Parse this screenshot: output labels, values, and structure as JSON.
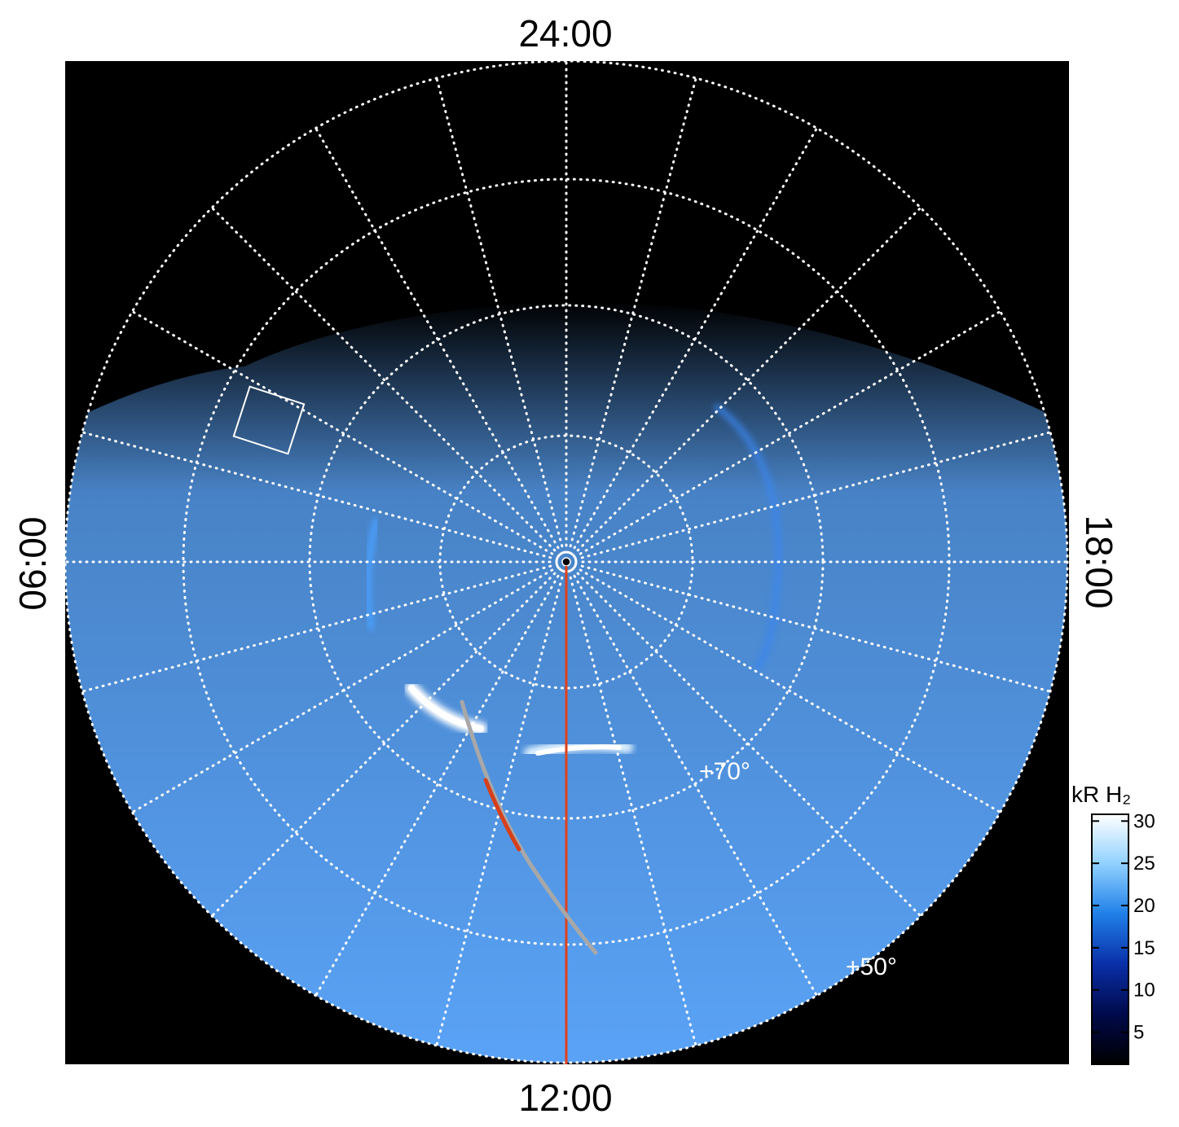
{
  "chart_data": {
    "type": "polar-image",
    "local_time_labels": {
      "top": "24:00",
      "bottom": "12:00",
      "left": "06:00",
      "right": "18:00"
    },
    "latitude_labels": [
      "+70°",
      "+50°"
    ],
    "colorbar": {
      "title": "kR H₂",
      "ylim": [
        1.2,
        30.8
      ],
      "yticks": [
        5,
        10,
        15,
        20,
        25,
        30
      ],
      "colors": [
        "#000000",
        "#000a4a",
        "#0a2fa8",
        "#1f7fe8",
        "#8fd0ff",
        "#ffffff"
      ]
    }
  }
}
